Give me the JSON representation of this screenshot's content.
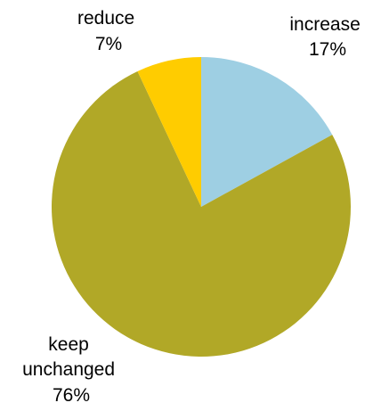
{
  "chart_data": {
    "type": "pie",
    "start_angle_deg": 0,
    "direction": "clockwise",
    "slices": [
      {
        "label": "increase",
        "value": 17,
        "value_label": "17%",
        "color": "#9ECFE3"
      },
      {
        "label": "keep unchanged",
        "label_lines": [
          "keep",
          "unchanged"
        ],
        "value": 76,
        "value_label": "76%",
        "color": "#B1A827"
      },
      {
        "label": "reduce",
        "value": 7,
        "value_label": "7%",
        "color": "#FFCC00"
      }
    ]
  }
}
